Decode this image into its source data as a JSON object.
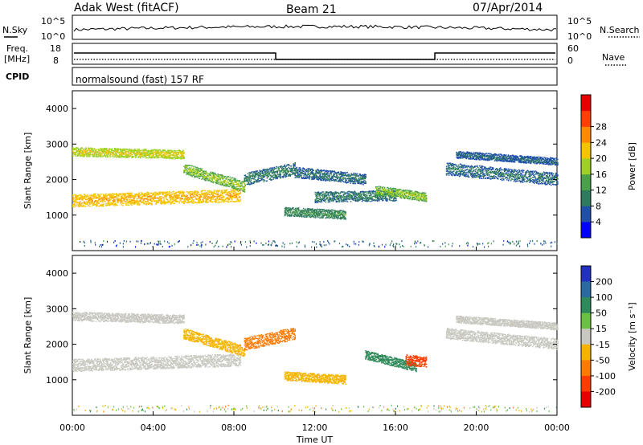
{
  "header": {
    "site": "Adak West (fitACF)",
    "beam": "Beam 21",
    "date": "07/Apr/2014"
  },
  "strips": {
    "noise": {
      "left_label": "N.Sky",
      "right_label": "N.Search",
      "left_ticks": [
        "10^5",
        "10^0"
      ],
      "right_ticks": [
        "10^5",
        "10^0"
      ]
    },
    "freq": {
      "left_label_1": "Freq.",
      "left_label_2": "[MHz]",
      "right_label": "Nave",
      "left_ticks": [
        "18",
        "8"
      ],
      "right_ticks": [
        "60",
        "0"
      ]
    },
    "cpid": {
      "label": "CPID",
      "program": "normalsound (fast) 157 RF"
    }
  },
  "chart_data": [
    {
      "type": "heatmap",
      "name": "power-panel",
      "xlabel": "Time UT",
      "ylabel": "Slant Range [km]",
      "xlim": [
        0,
        24
      ],
      "ylim": [
        0,
        4500
      ],
      "x_ticks": [
        "00:00",
        "04:00",
        "08:00",
        "12:00",
        "16:00",
        "20:00",
        "00:00"
      ],
      "y_ticks": [
        "1000",
        "2000",
        "3000",
        "4000"
      ],
      "colorbar": {
        "label": "Power [dB]",
        "ticks": [
          "4",
          "8",
          "12",
          "16",
          "20",
          "24",
          "28"
        ],
        "colors": [
          "#0000ff",
          "#1f4fa8",
          "#2e7a5c",
          "#4aa04a",
          "#9fd025",
          "#f5c400",
          "#ff8a00",
          "#ff4000",
          "#e60000"
        ]
      },
      "features": [
        {
          "t": [
            0.0,
            8.3
          ],
          "r_start": 1400,
          "r_end": 1550,
          "width": 350,
          "level": 20
        },
        {
          "t": [
            0.0,
            5.5
          ],
          "r_start": 2780,
          "r_end": 2700,
          "width": 250,
          "level": 17
        },
        {
          "t": [
            5.5,
            8.5
          ],
          "r_start": 2300,
          "r_end": 1800,
          "width": 300,
          "level": 14
        },
        {
          "t": [
            8.5,
            11.0
          ],
          "r_start": 2000,
          "r_end": 2300,
          "width": 350,
          "level": 7
        },
        {
          "t": [
            11.0,
            14.5
          ],
          "r_start": 2200,
          "r_end": 2000,
          "width": 300,
          "level": 6
        },
        {
          "t": [
            12.0,
            16.0
          ],
          "r_start": 1500,
          "r_end": 1550,
          "width": 300,
          "level": 7
        },
        {
          "t": [
            15.0,
            17.5
          ],
          "r_start": 1700,
          "r_end": 1500,
          "width": 250,
          "level": 14
        },
        {
          "t": [
            10.5,
            13.5
          ],
          "r_start": 1100,
          "r_end": 1000,
          "width": 250,
          "level": 9
        },
        {
          "t": [
            18.5,
            24.0
          ],
          "r_start": 2300,
          "r_end": 2000,
          "width": 350,
          "level": 6
        },
        {
          "t": [
            19.0,
            24.0
          ],
          "r_start": 2700,
          "r_end": 2500,
          "width": 200,
          "level": 5
        }
      ]
    },
    {
      "type": "heatmap",
      "name": "velocity-panel",
      "xlabel": "Time UT",
      "ylabel": "Slant Range [km]",
      "xlim": [
        0,
        24
      ],
      "ylim": [
        0,
        4500
      ],
      "x_ticks": [
        "00:00",
        "04:00",
        "08:00",
        "12:00",
        "16:00",
        "20:00",
        "00:00"
      ],
      "y_ticks": [
        "1000",
        "2000",
        "3000",
        "4000"
      ],
      "colorbar": {
        "label": "Velocity [m s⁻¹]",
        "ticks": [
          "200",
          "100",
          "50",
          "15",
          "-15",
          "-50",
          "-100",
          "-200"
        ],
        "colors": [
          "#2030c0",
          "#2a6aa0",
          "#2e8a5a",
          "#6ac040",
          "#c8c8c0",
          "#f5b400",
          "#ff7a00",
          "#ff3c00",
          "#e60000"
        ]
      },
      "features": [
        {
          "t": [
            0.0,
            8.3
          ],
          "r_start": 1400,
          "r_end": 1550,
          "width": 350,
          "level": 0
        },
        {
          "t": [
            0.0,
            5.5
          ],
          "r_start": 2780,
          "r_end": 2700,
          "width": 250,
          "level": 0
        },
        {
          "t": [
            5.5,
            8.5
          ],
          "r_start": 2300,
          "r_end": 1800,
          "width": 300,
          "level": -40
        },
        {
          "t": [
            8.5,
            11.0
          ],
          "r_start": 2000,
          "r_end": 2300,
          "width": 350,
          "level": -60
        },
        {
          "t": [
            14.5,
            17.0
          ],
          "r_start": 1700,
          "r_end": 1350,
          "width": 250,
          "level": 80
        },
        {
          "t": [
            16.5,
            17.5
          ],
          "r_start": 1550,
          "r_end": 1500,
          "width": 300,
          "level": -180
        },
        {
          "t": [
            10.5,
            13.5
          ],
          "r_start": 1100,
          "r_end": 1000,
          "width": 250,
          "level": -40
        },
        {
          "t": [
            18.5,
            24.0
          ],
          "r_start": 2300,
          "r_end": 2000,
          "width": 300,
          "level": 0
        },
        {
          "t": [
            19.0,
            24.0
          ],
          "r_start": 2700,
          "r_end": 2500,
          "width": 200,
          "level": 0
        }
      ]
    }
  ]
}
